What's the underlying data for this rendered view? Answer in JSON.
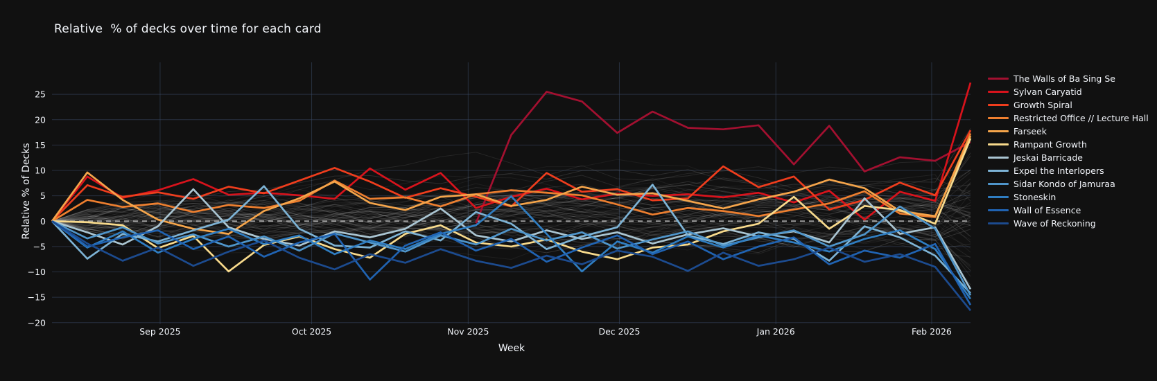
{
  "colors": {
    "background": "#111111",
    "grid": "#3a4a66",
    "zeroline": "#999999",
    "text": "#f2f5fa"
  },
  "chart_data": {
    "type": "line",
    "title": "Relative  % of decks over time for each card",
    "xlabel": "Week",
    "ylabel": "Relative % of Decks",
    "grid": true,
    "legend_position": "right",
    "n_weeks": 27,
    "ylim": [
      -20.3,
      31.3
    ],
    "y_ticks": [
      {
        "value": 25,
        "label": "25"
      },
      {
        "value": 20,
        "label": "20"
      },
      {
        "value": 15,
        "label": "15"
      },
      {
        "value": 10,
        "label": "10"
      },
      {
        "value": 5,
        "label": "5"
      },
      {
        "value": 0,
        "label": "0"
      },
      {
        "value": -5,
        "label": "−5"
      },
      {
        "value": -10,
        "label": "−10"
      },
      {
        "value": -15,
        "label": "−15"
      },
      {
        "value": -20,
        "label": "−20"
      }
    ],
    "x_ticks": [
      {
        "week": 3.06,
        "label": "Sep 2025"
      },
      {
        "week": 7.35,
        "label": "Oct 2025"
      },
      {
        "week": 11.78,
        "label": "Nov 2025"
      },
      {
        "week": 16.06,
        "label": "Dec 2025"
      },
      {
        "week": 20.49,
        "label": "Jan 2026"
      },
      {
        "week": 24.9,
        "label": "Feb 2026"
      }
    ],
    "zeroline_dashed": true,
    "series": [
      {
        "name": "The Walls of Ba Sing Se",
        "color": "#a31030",
        "values": [
          null,
          null,
          null,
          null,
          null,
          null,
          null,
          null,
          null,
          null,
          null,
          null,
          -0.4,
          17.0,
          25.5,
          23.6,
          17.4,
          21.6,
          18.4,
          18.1,
          18.9,
          11.2,
          18.8,
          9.8,
          12.6,
          11.9,
          15.6
        ]
      },
      {
        "name": "Sylvan Caryatid",
        "color": "#d8131c",
        "values": [
          0,
          8.8,
          4.6,
          6.1,
          8.3,
          5.2,
          5.6,
          5.1,
          4.4,
          10.4,
          6.2,
          9.5,
          2.6,
          4.8,
          6.4,
          4.3,
          5.4,
          5.0,
          5.3,
          4.7,
          5.6,
          3.7,
          6.0,
          0.3,
          5.8,
          4.0,
          27.3
        ]
      },
      {
        "name": "Growth Spiral",
        "color": "#ef3d1d",
        "values": [
          0,
          7.1,
          4.8,
          5.7,
          4.4,
          6.8,
          5.5,
          8.0,
          10.5,
          7.8,
          4.6,
          6.5,
          4.8,
          2.9,
          9.5,
          5.8,
          6.3,
          4.1,
          4.5,
          10.8,
          6.7,
          8.8,
          2.3,
          4.2,
          7.6,
          5.1,
          17.9
        ]
      },
      {
        "name": "Restricted Office // Lecture Hall",
        "color": "#ee7f2f",
        "values": [
          0,
          4.2,
          2.8,
          3.5,
          1.8,
          3.2,
          2.6,
          4.0,
          8.0,
          4.4,
          4.7,
          2.9,
          5.3,
          6.1,
          5.6,
          5.1,
          3.3,
          1.3,
          2.6,
          2.0,
          1.0,
          2.3,
          3.5,
          5.9,
          1.5,
          0.8,
          17.3
        ]
      },
      {
        "name": "Farseek",
        "color": "#f5a54b",
        "values": [
          0,
          9.6,
          4.2,
          0.3,
          -1.5,
          -2.5,
          2.0,
          4.5,
          7.8,
          3.6,
          2.2,
          4.8,
          5.3,
          3.0,
          4.2,
          6.8,
          5.2,
          5.5,
          4.0,
          2.5,
          4.3,
          5.8,
          8.2,
          6.5,
          2.0,
          1.0,
          16.8
        ]
      },
      {
        "name": "Rampant Growth",
        "color": "#f8da8c",
        "values": [
          0,
          -0.2,
          -0.8,
          -5.3,
          -2.9,
          -9.9,
          -4.7,
          -3.0,
          -5.5,
          -7.2,
          -2.5,
          -0.8,
          -4.2,
          -5.0,
          -3.6,
          -6.0,
          -7.5,
          -5.2,
          -4.6,
          -2.0,
          -0.5,
          4.8,
          -1.5,
          3.0,
          2.2,
          -0.5,
          16.3
        ]
      },
      {
        "name": "Jeskai Barricade",
        "color": "#aac5d2",
        "values": [
          0,
          -2.2,
          -4.6,
          -1.0,
          6.3,
          -1.2,
          -3.5,
          -4.8,
          -2.0,
          -3.2,
          -1.5,
          2.5,
          -2.8,
          -4.0,
          -1.8,
          -3.5,
          -2.2,
          -4.4,
          -2.6,
          -1.4,
          -3.0,
          -2.0,
          -4.2,
          4.5,
          -2.5,
          -1.2,
          -13.4
        ]
      },
      {
        "name": "Expel the Interlopers",
        "color": "#7db3d5",
        "values": [
          0,
          -7.4,
          -2.5,
          -4.0,
          -1.8,
          0.3,
          6.9,
          -1.5,
          -4.8,
          -5.2,
          -2.0,
          -3.8,
          1.8,
          -0.5,
          -5.5,
          -3.0,
          -1.2,
          7.2,
          -2.8,
          -4.5,
          -2.2,
          -3.5,
          -7.8,
          -1.0,
          -3.2,
          -6.8,
          -14.2
        ]
      },
      {
        "name": "Sidar Kondo of Jamuraa",
        "color": "#4f95ca",
        "values": [
          0,
          -3.4,
          -1.2,
          -4.4,
          -2.6,
          -5.0,
          -3.0,
          -5.8,
          -2.4,
          -4.2,
          -6.0,
          -2.8,
          -4.6,
          -1.5,
          -3.8,
          -2.2,
          -5.4,
          -3.6,
          -2.0,
          -4.8,
          -3.2,
          -1.8,
          -5.0,
          -2.6,
          2.9,
          -1.5,
          -14.6
        ]
      },
      {
        "name": "Stoneskin",
        "color": "#2f7dc1",
        "values": [
          0,
          -5.2,
          -2.0,
          -6.2,
          -3.5,
          -1.5,
          -4.5,
          -2.8,
          -6.5,
          -3.8,
          -5.5,
          -2.5,
          -0.8,
          4.9,
          -2.5,
          -9.9,
          -4.0,
          -6.2,
          -3.0,
          -5.2,
          -2.8,
          -4.2,
          -6.0,
          -3.5,
          -1.8,
          -5.5,
          -15.3
        ]
      },
      {
        "name": "Wall of Essence",
        "color": "#2063b2",
        "values": [
          0,
          -5.0,
          -3.2,
          -1.8,
          -5.5,
          -3.0,
          -7.0,
          -4.2,
          -2.5,
          -11.5,
          -4.8,
          -2.2,
          -5.8,
          -3.5,
          -8.0,
          -5.2,
          -2.8,
          -6.5,
          -4.0,
          -7.5,
          -5.0,
          -3.2,
          -8.5,
          -5.8,
          -7.2,
          -4.5,
          -16.5
        ]
      },
      {
        "name": "Wave of Reckoning",
        "color": "#1c4b8f",
        "values": [
          0,
          -4.4,
          -7.8,
          -5.2,
          -8.8,
          -6.0,
          -3.8,
          -7.2,
          -9.5,
          -6.5,
          -8.2,
          -5.5,
          -7.8,
          -9.2,
          -6.8,
          -8.5,
          -5.8,
          -7.0,
          -9.8,
          -6.2,
          -8.8,
          -7.5,
          -5.2,
          -8.0,
          -6.5,
          -9.0,
          -17.6
        ]
      }
    ],
    "background_series": {
      "note": "many unlabeled faint gray context lines, all starting at 0",
      "count": 55,
      "color": "#c8c8c8",
      "seed": 42
    }
  }
}
